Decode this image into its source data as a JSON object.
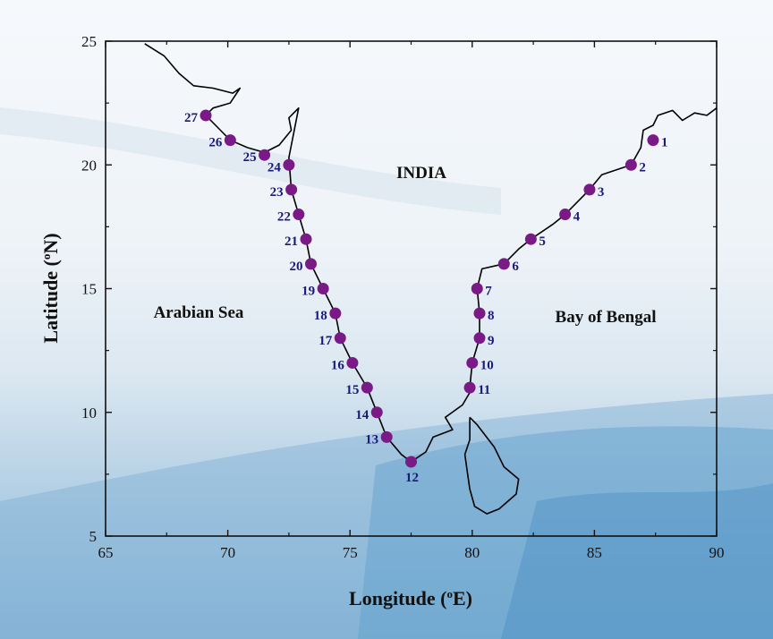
{
  "chart_data": {
    "type": "scatter",
    "xlabel": "Longitude",
    "xunit_super": "o",
    "xunit": "E",
    "ylabel": "Latitude",
    "yunit_super": "o",
    "yunit": "N",
    "xlim": [
      65,
      90
    ],
    "ylim": [
      5,
      25
    ],
    "xticks": [
      "65",
      "70",
      "75",
      "80",
      "85",
      "90"
    ],
    "yticks": [
      "5",
      "10",
      "15",
      "20",
      "25"
    ],
    "regions": [
      "INDIA",
      "Arabian Sea",
      "Bay of Bengal"
    ],
    "stations": [
      {
        "id": "1",
        "lon": 87.4,
        "lat": 21.0
      },
      {
        "id": "2",
        "lon": 86.5,
        "lat": 20.0
      },
      {
        "id": "3",
        "lon": 84.8,
        "lat": 19.0
      },
      {
        "id": "4",
        "lon": 83.8,
        "lat": 18.0
      },
      {
        "id": "5",
        "lon": 82.4,
        "lat": 17.0
      },
      {
        "id": "6",
        "lon": 81.3,
        "lat": 16.0
      },
      {
        "id": "7",
        "lon": 80.2,
        "lat": 15.0
      },
      {
        "id": "8",
        "lon": 80.3,
        "lat": 14.0
      },
      {
        "id": "9",
        "lon": 80.3,
        "lat": 13.0
      },
      {
        "id": "10",
        "lon": 80.0,
        "lat": 12.0
      },
      {
        "id": "11",
        "lon": 79.9,
        "lat": 11.0
      },
      {
        "id": "12",
        "lon": 77.5,
        "lat": 8.0
      },
      {
        "id": "13",
        "lon": 76.5,
        "lat": 9.0
      },
      {
        "id": "14",
        "lon": 76.1,
        "lat": 10.0
      },
      {
        "id": "15",
        "lon": 75.7,
        "lat": 11.0
      },
      {
        "id": "16",
        "lon": 75.1,
        "lat": 12.0
      },
      {
        "id": "17",
        "lon": 74.6,
        "lat": 13.0
      },
      {
        "id": "18",
        "lon": 74.4,
        "lat": 14.0
      },
      {
        "id": "19",
        "lon": 73.9,
        "lat": 15.0
      },
      {
        "id": "20",
        "lon": 73.4,
        "lat": 16.0
      },
      {
        "id": "21",
        "lon": 73.2,
        "lat": 17.0
      },
      {
        "id": "22",
        "lon": 72.9,
        "lat": 18.0
      },
      {
        "id": "23",
        "lon": 72.6,
        "lat": 19.0
      },
      {
        "id": "24",
        "lon": 72.5,
        "lat": 20.0
      },
      {
        "id": "25",
        "lon": 71.5,
        "lat": 20.4
      },
      {
        "id": "26",
        "lon": 70.1,
        "lat": 21.0
      },
      {
        "id": "27",
        "lon": 69.1,
        "lat": 22.0
      }
    ],
    "coastline_india": [
      [
        66.6,
        24.9
      ],
      [
        67.4,
        24.4
      ],
      [
        68.0,
        23.7
      ],
      [
        68.6,
        23.2
      ],
      [
        69.4,
        23.1
      ],
      [
        70.2,
        22.9
      ],
      [
        70.5,
        23.1
      ],
      [
        70.1,
        22.5
      ],
      [
        69.4,
        22.3
      ],
      [
        69.1,
        22.0
      ],
      [
        69.7,
        21.4
      ],
      [
        70.1,
        21.0
      ],
      [
        70.8,
        20.7
      ],
      [
        71.5,
        20.5
      ],
      [
        72.1,
        20.8
      ],
      [
        72.6,
        21.4
      ],
      [
        72.5,
        21.9
      ],
      [
        72.9,
        22.3
      ],
      [
        72.5,
        20.3
      ],
      [
        72.6,
        19.0
      ],
      [
        72.9,
        18.0
      ],
      [
        73.2,
        17.0
      ],
      [
        73.4,
        16.0
      ],
      [
        73.9,
        15.0
      ],
      [
        74.4,
        14.0
      ],
      [
        74.6,
        13.0
      ],
      [
        75.1,
        12.0
      ],
      [
        75.7,
        11.0
      ],
      [
        76.1,
        10.0
      ],
      [
        76.5,
        9.0
      ],
      [
        77.1,
        8.3
      ],
      [
        77.5,
        8.0
      ],
      [
        78.1,
        8.4
      ],
      [
        78.4,
        9.0
      ],
      [
        79.2,
        9.3
      ],
      [
        78.9,
        9.8
      ],
      [
        79.6,
        10.3
      ],
      [
        79.9,
        10.8
      ],
      [
        79.9,
        11.0
      ],
      [
        80.0,
        12.0
      ],
      [
        80.3,
        13.0
      ],
      [
        80.3,
        14.0
      ],
      [
        80.2,
        15.0
      ],
      [
        80.4,
        15.8
      ],
      [
        81.3,
        16.0
      ],
      [
        81.9,
        16.6
      ],
      [
        82.4,
        17.0
      ],
      [
        83.3,
        17.6
      ],
      [
        83.8,
        18.0
      ],
      [
        84.8,
        19.0
      ],
      [
        85.3,
        19.6
      ],
      [
        86.5,
        20.0
      ],
      [
        86.9,
        20.7
      ],
      [
        87.0,
        21.4
      ],
      [
        87.4,
        21.6
      ],
      [
        87.6,
        22.0
      ],
      [
        88.2,
        22.2
      ],
      [
        88.6,
        21.8
      ],
      [
        89.1,
        22.1
      ],
      [
        89.6,
        22.0
      ],
      [
        90.0,
        22.3
      ]
    ],
    "coastline_srilanka": [
      [
        79.9,
        9.8
      ],
      [
        80.2,
        9.5
      ],
      [
        80.9,
        8.6
      ],
      [
        81.3,
        7.8
      ],
      [
        81.9,
        7.3
      ],
      [
        81.8,
        6.7
      ],
      [
        81.1,
        6.1
      ],
      [
        80.6,
        5.9
      ],
      [
        80.1,
        6.2
      ],
      [
        79.9,
        6.9
      ],
      [
        79.8,
        7.6
      ],
      [
        79.7,
        8.3
      ],
      [
        79.9,
        8.9
      ],
      [
        79.9,
        9.8
      ]
    ]
  },
  "colors": {
    "station": "#7a1a86",
    "station_label": "#1a1a7a",
    "coastline": "#000000"
  }
}
